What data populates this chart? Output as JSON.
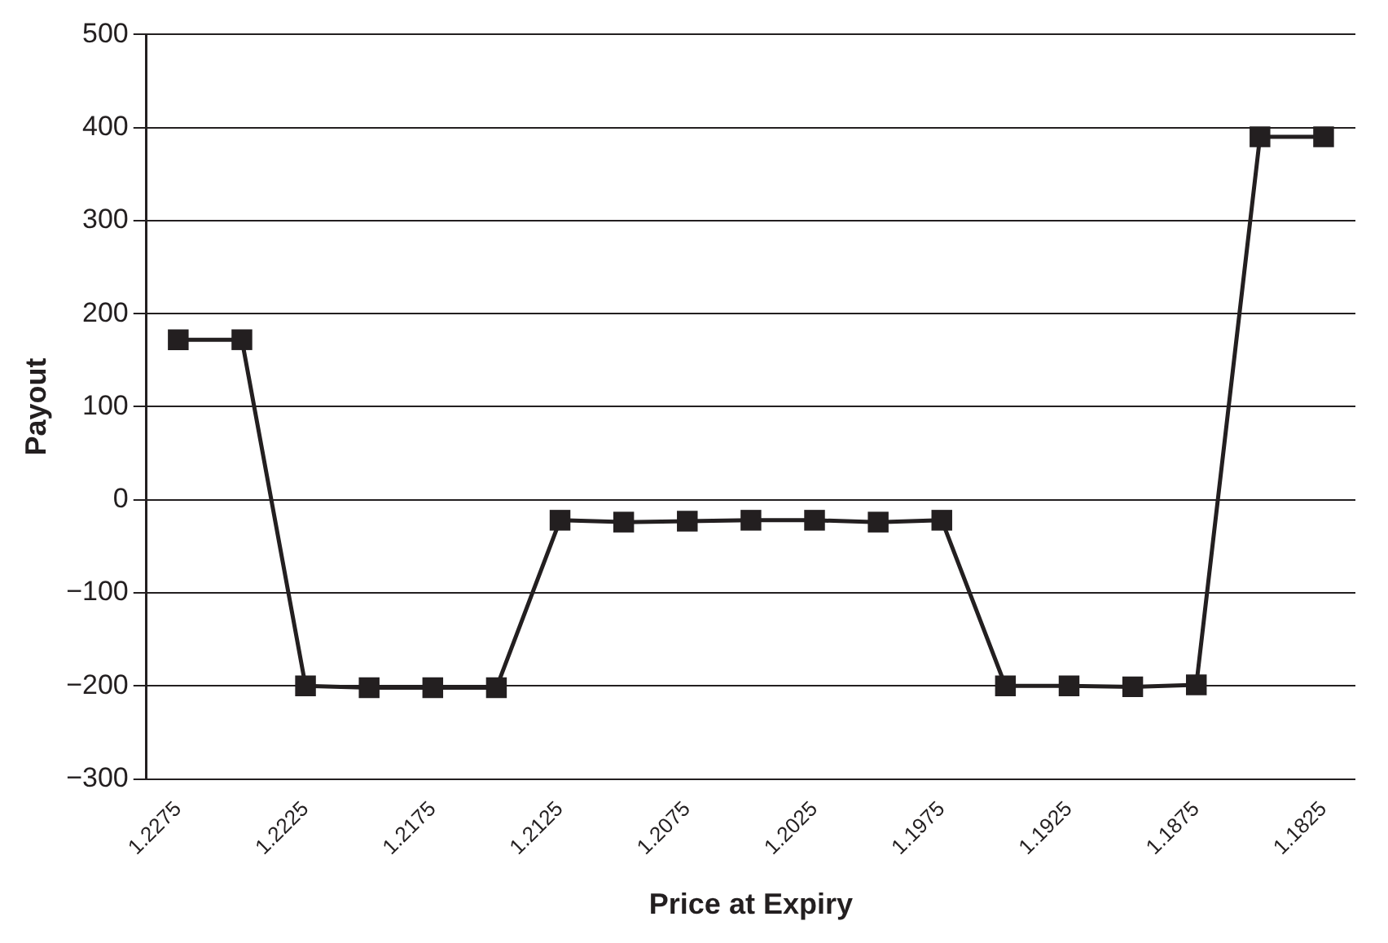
{
  "chart_data": {
    "type": "line",
    "xlabel": "Price at Expiry",
    "ylabel": "Payout",
    "categories": [
      "1.2275",
      null,
      "1.2225",
      null,
      "1.2175",
      null,
      "1.2125",
      null,
      "1.2075",
      null,
      "1.2025",
      null,
      "1.1975",
      null,
      "1.1925",
      null,
      "1.1875",
      null,
      "1.1825"
    ],
    "series": [
      {
        "color": "#231f20",
        "values": [
          172,
          172,
          -200,
          -202,
          -202,
          -202,
          -22,
          -24,
          -23,
          -22,
          -22,
          -24,
          -22,
          -200,
          -200,
          -201,
          -199,
          390,
          390
        ]
      }
    ],
    "ylim": [
      -300,
      500
    ],
    "yticks": [
      -300,
      -200,
      -100,
      0,
      100,
      200,
      300,
      400,
      500
    ],
    "grid": "y",
    "legend": false,
    "marker": "square",
    "line_style": "solid"
  }
}
